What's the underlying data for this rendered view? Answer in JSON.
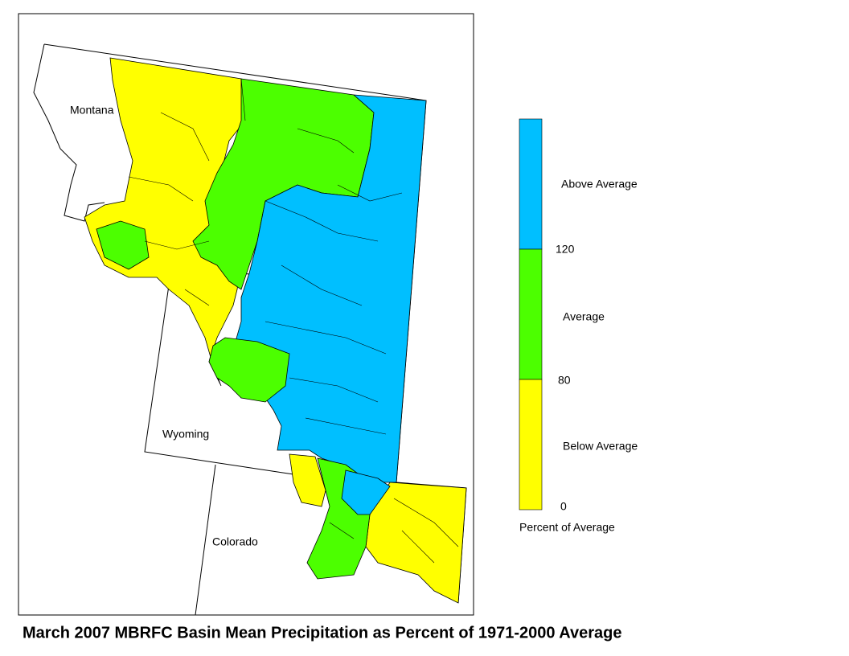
{
  "map": {
    "labels": [
      "Montana",
      "Wyoming",
      "Colorado"
    ]
  },
  "legend": {
    "items": [
      {
        "label": "Above Average",
        "color": "#00bfff"
      },
      {
        "label": "Average",
        "color": "#4cff00"
      },
      {
        "label": "Below Average",
        "color": "#ffff00"
      }
    ],
    "ticks": [
      120,
      80,
      0
    ],
    "caption": "Percent of Average"
  },
  "title": "March 2007 MBRFC Basin Mean Precipitation as Percent of 1971-2000 Average"
}
